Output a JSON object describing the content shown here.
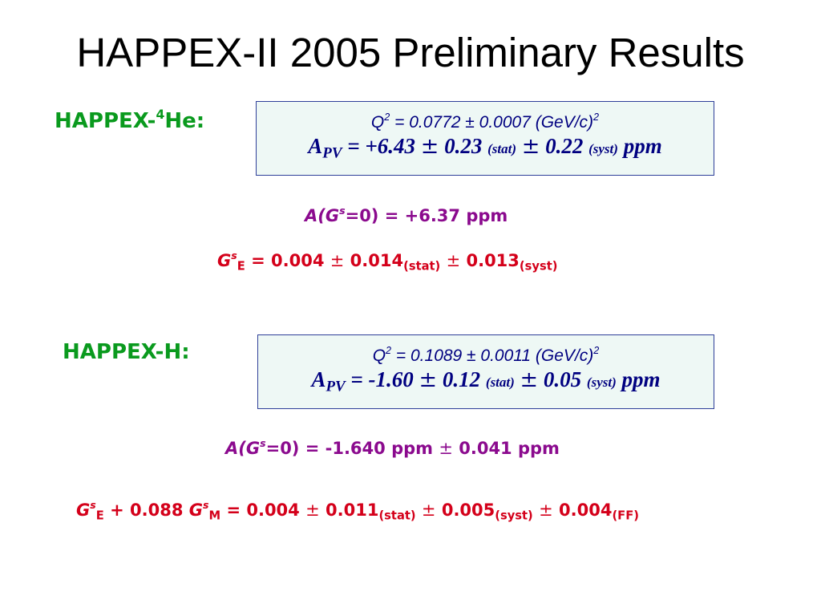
{
  "title": "HAPPEX-II 2005 Preliminary Results",
  "he": {
    "label": "HAPPEX-",
    "label_sup": "4",
    "label_end": "He:",
    "q2_prefix": "Q",
    "q2_sup": "2",
    "q2_text": " = 0.0772 ± 0.0007 (GeV/c)",
    "q2_unit_sup": "2",
    "apv_a": "A",
    "apv_sub": "PV",
    "apv_eq": " = +6.43 ",
    "apv_stat_val": " 0.23 ",
    "apv_stat": "(stat)",
    "apv_syst_val": " 0.22 ",
    "apv_syst": "(syst)",
    "apv_unit": " ppm",
    "ags": "A(G",
    "ags_sup": "s",
    "ags_end": "=0) = +6.37 ppm",
    "gse_g": "G",
    "gse_sup": "s",
    "gse_sub": "E",
    "gse_val": " = 0.004 ",
    "gse_stat_val": " 0.014",
    "gse_stat": "(stat)",
    "gse_syst_val": " 0.013",
    "gse_syst": "(syst)"
  },
  "h": {
    "label": "HAPPEX-H:",
    "q2_prefix": "Q",
    "q2_sup": "2",
    "q2_text": " = 0.1089 ± 0.0011 (GeV/c)",
    "q2_unit_sup": "2",
    "apv_a": "A",
    "apv_sub": "PV",
    "apv_eq": " = -1.60 ",
    "apv_stat_val": " 0.12 ",
    "apv_stat": "(stat)",
    "apv_syst_val": " 0.05 ",
    "apv_syst": "(syst)",
    "apv_unit": " ppm",
    "ags": "A(G",
    "ags_sup": "s",
    "ags_end": "=0) = -1.640 ppm ",
    "ags_err": " 0.041 ppm",
    "comb_g1": "G",
    "comb_sup1": "s",
    "comb_sub1": "E",
    "comb_mid": " + 0.088 ",
    "comb_g2": "G",
    "comb_sup2": "s",
    "comb_sub2": "M",
    "comb_val": " =  0.004 ",
    "comb_stat_val": " 0.011",
    "comb_stat": "(stat)",
    "comb_syst_val": " 0.005",
    "comb_syst": "(syst)",
    "comb_ff_val": " 0.004",
    "comb_ff": "(FF)"
  },
  "pm_symbol": "±"
}
